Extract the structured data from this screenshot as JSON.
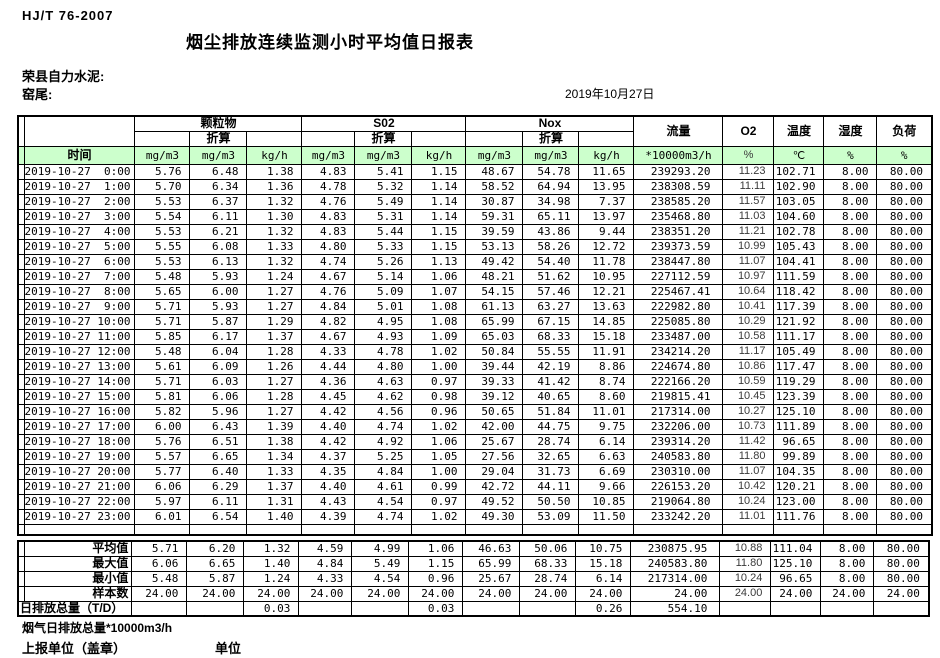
{
  "page": {
    "doc_code": "HJ/T  76-2007",
    "title": "烟尘排放连续监测小时平均值日报表",
    "company": "荣县自力水泥:",
    "location": "窑尾:",
    "date": "2019年10月27日",
    "footer_total_line": "烟气日排放总量*10000m3/h",
    "footer_report_unit": "上报单位（盖章）",
    "footer_unit": "单位"
  },
  "colors": {
    "header_green": "#ccffcc",
    "border": "#000000"
  },
  "table": {
    "time_label": "时间",
    "group_headers": {
      "pm": "颗粒物",
      "so2": "S02",
      "nox": "Nox",
      "flow": "流量",
      "o2": "O2",
      "temp": "温度",
      "hum": "湿度",
      "load": "负荷"
    },
    "zhesuan": "折算",
    "units": [
      "mg/m3",
      "mg/m3",
      "kg/h",
      "mg/m3",
      "mg/m3",
      "kg/h",
      "mg/m3",
      "mg/m3",
      "kg/h",
      "*10000m3/h",
      "%",
      "℃",
      "%",
      "%"
    ],
    "rows": [
      {
        "t": "2019-10-27  0:00",
        "v": [
          "5.76",
          "6.48",
          "1.38",
          "4.83",
          "5.41",
          "1.15",
          "48.67",
          "54.78",
          "11.65",
          "239293.20",
          "11.23",
          "102.71",
          "8.00",
          "80.00"
        ]
      },
      {
        "t": "2019-10-27  1:00",
        "v": [
          "5.70",
          "6.34",
          "1.36",
          "4.78",
          "5.32",
          "1.14",
          "58.52",
          "64.94",
          "13.95",
          "238308.59",
          "11.11",
          "102.90",
          "8.00",
          "80.00"
        ]
      },
      {
        "t": "2019-10-27  2:00",
        "v": [
          "5.53",
          "6.37",
          "1.32",
          "4.76",
          "5.49",
          "1.14",
          "30.87",
          "34.98",
          "7.37",
          "238585.20",
          "11.57",
          "103.05",
          "8.00",
          "80.00"
        ]
      },
      {
        "t": "2019-10-27  3:00",
        "v": [
          "5.54",
          "6.11",
          "1.30",
          "4.83",
          "5.31",
          "1.14",
          "59.31",
          "65.11",
          "13.97",
          "235468.80",
          "11.03",
          "104.60",
          "8.00",
          "80.00"
        ]
      },
      {
        "t": "2019-10-27  4:00",
        "v": [
          "5.53",
          "6.21",
          "1.32",
          "4.83",
          "5.44",
          "1.15",
          "39.59",
          "43.86",
          "9.44",
          "238351.20",
          "11.21",
          "102.78",
          "8.00",
          "80.00"
        ]
      },
      {
        "t": "2019-10-27  5:00",
        "v": [
          "5.55",
          "6.08",
          "1.33",
          "4.80",
          "5.33",
          "1.15",
          "53.13",
          "58.26",
          "12.72",
          "239373.59",
          "10.99",
          "105.43",
          "8.00",
          "80.00"
        ]
      },
      {
        "t": "2019-10-27  6:00",
        "v": [
          "5.53",
          "6.13",
          "1.32",
          "4.74",
          "5.26",
          "1.13",
          "49.42",
          "54.40",
          "11.78",
          "238447.80",
          "11.07",
          "104.41",
          "8.00",
          "80.00"
        ]
      },
      {
        "t": "2019-10-27  7:00",
        "v": [
          "5.48",
          "5.93",
          "1.24",
          "4.67",
          "5.14",
          "1.06",
          "48.21",
          "51.62",
          "10.95",
          "227112.59",
          "10.97",
          "111.59",
          "8.00",
          "80.00"
        ]
      },
      {
        "t": "2019-10-27  8:00",
        "v": [
          "5.65",
          "6.00",
          "1.27",
          "4.76",
          "5.09",
          "1.07",
          "54.15",
          "57.46",
          "12.21",
          "225467.41",
          "10.64",
          "118.42",
          "8.00",
          "80.00"
        ]
      },
      {
        "t": "2019-10-27  9:00",
        "v": [
          "5.71",
          "5.93",
          "1.27",
          "4.84",
          "5.01",
          "1.08",
          "61.13",
          "63.27",
          "13.63",
          "222982.80",
          "10.41",
          "117.39",
          "8.00",
          "80.00"
        ]
      },
      {
        "t": "2019-10-27 10:00",
        "v": [
          "5.71",
          "5.87",
          "1.29",
          "4.82",
          "4.95",
          "1.08",
          "65.99",
          "67.15",
          "14.85",
          "225085.80",
          "10.29",
          "121.92",
          "8.00",
          "80.00"
        ]
      },
      {
        "t": "2019-10-27 11:00",
        "v": [
          "5.85",
          "6.17",
          "1.37",
          "4.67",
          "4.93",
          "1.09",
          "65.03",
          "68.33",
          "15.18",
          "233487.00",
          "10.58",
          "111.17",
          "8.00",
          "80.00"
        ]
      },
      {
        "t": "2019-10-27 12:00",
        "v": [
          "5.48",
          "6.04",
          "1.28",
          "4.33",
          "4.78",
          "1.02",
          "50.84",
          "55.55",
          "11.91",
          "234214.20",
          "11.17",
          "105.49",
          "8.00",
          "80.00"
        ]
      },
      {
        "t": "2019-10-27 13:00",
        "v": [
          "5.61",
          "6.09",
          "1.26",
          "4.44",
          "4.80",
          "1.00",
          "39.44",
          "42.19",
          "8.86",
          "224674.80",
          "10.86",
          "117.47",
          "8.00",
          "80.00"
        ]
      },
      {
        "t": "2019-10-27 14:00",
        "v": [
          "5.71",
          "6.03",
          "1.27",
          "4.36",
          "4.63",
          "0.97",
          "39.33",
          "41.42",
          "8.74",
          "222166.20",
          "10.59",
          "119.29",
          "8.00",
          "80.00"
        ]
      },
      {
        "t": "2019-10-27 15:00",
        "v": [
          "5.81",
          "6.06",
          "1.28",
          "4.45",
          "4.62",
          "0.98",
          "39.12",
          "40.65",
          "8.60",
          "219815.41",
          "10.45",
          "123.39",
          "8.00",
          "80.00"
        ]
      },
      {
        "t": "2019-10-27 16:00",
        "v": [
          "5.82",
          "5.96",
          "1.27",
          "4.42",
          "4.56",
          "0.96",
          "50.65",
          "51.84",
          "11.01",
          "217314.00",
          "10.27",
          "125.10",
          "8.00",
          "80.00"
        ]
      },
      {
        "t": "2019-10-27 17:00",
        "v": [
          "6.00",
          "6.43",
          "1.39",
          "4.40",
          "4.74",
          "1.02",
          "42.00",
          "44.75",
          "9.75",
          "232206.00",
          "10.73",
          "111.89",
          "8.00",
          "80.00"
        ]
      },
      {
        "t": "2019-10-27 18:00",
        "v": [
          "5.76",
          "6.51",
          "1.38",
          "4.42",
          "4.92",
          "1.06",
          "25.67",
          "28.74",
          "6.14",
          "239314.20",
          "11.42",
          "96.65",
          "8.00",
          "80.00"
        ]
      },
      {
        "t": "2019-10-27 19:00",
        "v": [
          "5.57",
          "6.65",
          "1.34",
          "4.37",
          "5.25",
          "1.05",
          "27.56",
          "32.65",
          "6.63",
          "240583.80",
          "11.80",
          "99.89",
          "8.00",
          "80.00"
        ]
      },
      {
        "t": "2019-10-27 20:00",
        "v": [
          "5.77",
          "6.40",
          "1.33",
          "4.35",
          "4.84",
          "1.00",
          "29.04",
          "31.73",
          "6.69",
          "230310.00",
          "11.07",
          "104.35",
          "8.00",
          "80.00"
        ]
      },
      {
        "t": "2019-10-27 21:00",
        "v": [
          "6.06",
          "6.29",
          "1.37",
          "4.40",
          "4.61",
          "0.99",
          "42.72",
          "44.11",
          "9.66",
          "226153.20",
          "10.42",
          "120.21",
          "8.00",
          "80.00"
        ]
      },
      {
        "t": "2019-10-27 22:00",
        "v": [
          "5.97",
          "6.11",
          "1.31",
          "4.43",
          "4.54",
          "0.97",
          "49.52",
          "50.50",
          "10.85",
          "219064.80",
          "10.24",
          "123.00",
          "8.00",
          "80.00"
        ]
      },
      {
        "t": "2019-10-27 23:00",
        "v": [
          "6.01",
          "6.54",
          "1.40",
          "4.39",
          "4.74",
          "1.02",
          "49.30",
          "53.09",
          "11.50",
          "233242.20",
          "11.01",
          "111.76",
          "8.00",
          "80.00"
        ]
      }
    ],
    "summary": [
      {
        "label": "平均值",
        "total": false,
        "v": [
          "5.71",
          "6.20",
          "1.32",
          "4.59",
          "4.99",
          "1.06",
          "46.63",
          "50.06",
          "10.75",
          "230875.95",
          "10.88",
          "111.04",
          "8.00",
          "80.00"
        ]
      },
      {
        "label": "最大值",
        "total": false,
        "v": [
          "6.06",
          "6.65",
          "1.40",
          "4.84",
          "5.49",
          "1.15",
          "65.99",
          "68.33",
          "15.18",
          "240583.80",
          "11.80",
          "125.10",
          "8.00",
          "80.00"
        ]
      },
      {
        "label": "最小值",
        "total": false,
        "v": [
          "5.48",
          "5.87",
          "1.24",
          "4.33",
          "4.54",
          "0.96",
          "25.67",
          "28.74",
          "6.14",
          "217314.00",
          "10.24",
          "96.65",
          "8.00",
          "80.00"
        ]
      },
      {
        "label": "样本数",
        "total": false,
        "v": [
          "24.00",
          "24.00",
          "24.00",
          "24.00",
          "24.00",
          "24.00",
          "24.00",
          "24.00",
          "24.00",
          "24.00",
          "24.00",
          "24.00",
          "24.00",
          "24.00"
        ]
      },
      {
        "label": "日排放总量（T/D）",
        "total": true,
        "v": [
          "",
          "",
          "0.03",
          "",
          "",
          "0.03",
          "",
          "",
          "0.26",
          "554.10",
          "",
          "",
          "",
          ""
        ]
      }
    ]
  }
}
